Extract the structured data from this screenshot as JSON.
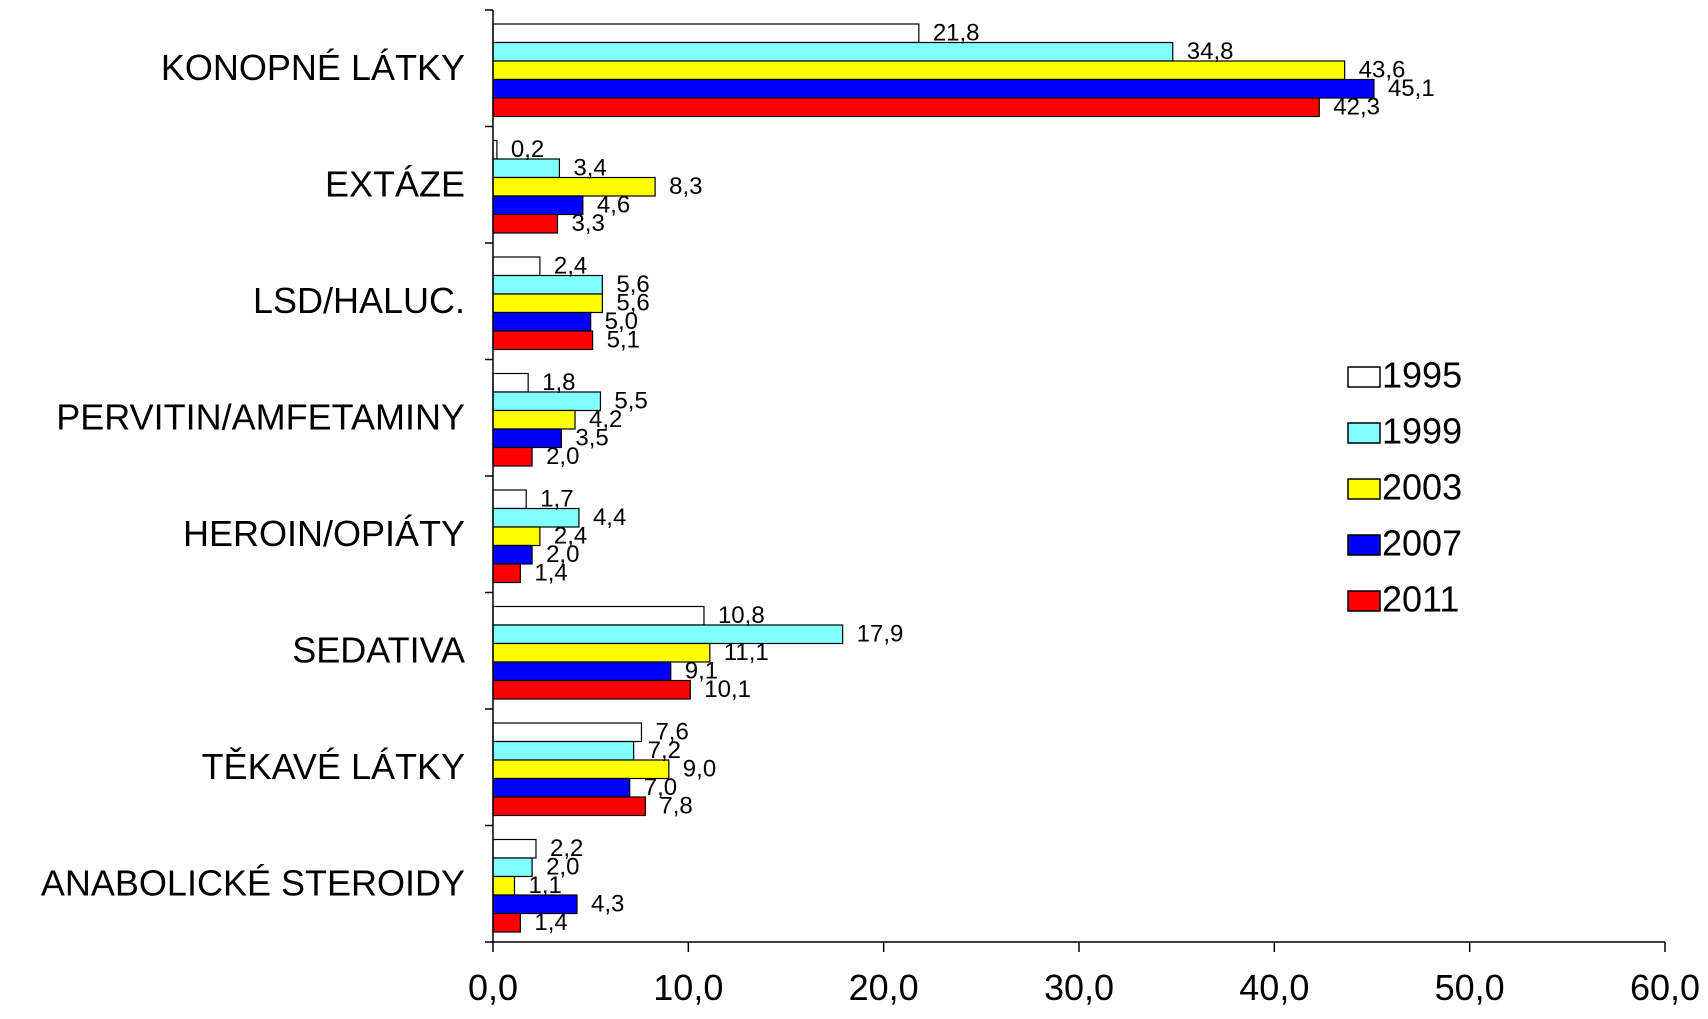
{
  "chart_data": {
    "type": "bar",
    "orientation": "horizontal",
    "categories": [
      "KONOPNÉ LÁTKY",
      "EXTÁZE",
      "LSD/HALUC.",
      "PERVITIN/AMFETAMINY",
      "HEROIN/OPIÁTY",
      "SEDATIVA",
      "TĚKAVÉ LÁTKY",
      "ANABOLICKÉ STEROIDY"
    ],
    "series": [
      {
        "name": "1995",
        "color": "#FFFFFF",
        "values": [
          21.8,
          0.2,
          2.4,
          1.8,
          1.7,
          10.8,
          7.6,
          2.2
        ],
        "labels": [
          "21,8",
          "0,2",
          "2,4",
          "1,8",
          "1,7",
          "10,8",
          "7,6",
          "2,2"
        ]
      },
      {
        "name": "1999",
        "color": "#80FFFF",
        "values": [
          34.8,
          3.4,
          5.6,
          5.5,
          4.4,
          17.9,
          7.2,
          2.0
        ],
        "labels": [
          "34,8",
          "3,4",
          "5,6",
          "5,5",
          "4,4",
          "17,9",
          "7,2",
          "2,0"
        ]
      },
      {
        "name": "2003",
        "color": "#FFFF00",
        "values": [
          43.6,
          8.3,
          5.6,
          4.2,
          2.4,
          11.1,
          9.0,
          1.1
        ],
        "labels": [
          "43,6",
          "8,3",
          "5,6",
          "4,2",
          "2,4",
          "11,1",
          "9,0",
          "1,1"
        ]
      },
      {
        "name": "2007",
        "color": "#0000FF",
        "values": [
          45.1,
          4.6,
          5.0,
          3.5,
          2.0,
          9.1,
          7.0,
          4.3
        ],
        "labels": [
          "45,1",
          "4,6",
          "5,0",
          "3,5",
          "2,0",
          "9,1",
          "7,0",
          "4,3"
        ]
      },
      {
        "name": "2011",
        "color": "#FF0000",
        "values": [
          42.3,
          3.3,
          5.1,
          2.0,
          1.4,
          10.1,
          7.8,
          1.4
        ],
        "labels": [
          "42,3",
          "3,3",
          "5,1",
          "2,0",
          "1,4",
          "10,1",
          "7,8",
          "1,4"
        ]
      }
    ],
    "xlim": [
      0,
      60
    ],
    "xticks": [
      0,
      10,
      20,
      30,
      40,
      50,
      60
    ],
    "xtick_labels": [
      "0,0",
      "10,0",
      "20,0",
      "30,0",
      "40,0",
      "50,0",
      "60,0"
    ],
    "grid": false,
    "legend_position": "right"
  }
}
